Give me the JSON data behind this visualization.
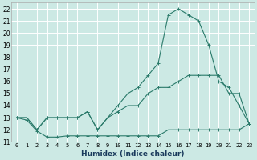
{
  "xlabel": "Humidex (Indice chaleur)",
  "xlim": [
    -0.5,
    23.5
  ],
  "ylim": [
    11,
    22.5
  ],
  "yticks": [
    11,
    12,
    13,
    14,
    15,
    16,
    17,
    18,
    19,
    20,
    21,
    22
  ],
  "xticks": [
    0,
    1,
    2,
    3,
    4,
    5,
    6,
    7,
    8,
    9,
    10,
    11,
    12,
    13,
    14,
    15,
    16,
    17,
    18,
    19,
    20,
    21,
    22,
    23
  ],
  "bg_color": "#cce9e4",
  "grid_color": "#ffffff",
  "line_color": "#2a7a6a",
  "line1_x": [
    0,
    1,
    2,
    3,
    4,
    5,
    6,
    7,
    8,
    9,
    10,
    11,
    12,
    13,
    14,
    15,
    16,
    17,
    18,
    19,
    20,
    21,
    22,
    23
  ],
  "line1_y": [
    13.0,
    12.8,
    11.9,
    11.4,
    11.4,
    11.5,
    11.5,
    11.5,
    11.5,
    11.5,
    11.5,
    11.5,
    11.5,
    11.5,
    11.5,
    12.0,
    12.0,
    12.0,
    12.0,
    12.0,
    12.0,
    12.0,
    12.0,
    12.5
  ],
  "line2_x": [
    0,
    1,
    2,
    3,
    4,
    5,
    6,
    7,
    8,
    9,
    10,
    11,
    12,
    13,
    14,
    15,
    16,
    17,
    18,
    19,
    20,
    21,
    22,
    23
  ],
  "line2_y": [
    13.0,
    13.0,
    12.0,
    13.0,
    13.0,
    13.0,
    13.0,
    13.5,
    12.0,
    13.0,
    13.5,
    14.0,
    14.0,
    15.0,
    15.5,
    15.5,
    16.0,
    16.5,
    16.5,
    16.5,
    16.5,
    15.0,
    15.0,
    12.5
  ],
  "line3_x": [
    0,
    1,
    2,
    3,
    4,
    5,
    6,
    7,
    8,
    9,
    10,
    11,
    12,
    13,
    14,
    15,
    16,
    17,
    18,
    19,
    20,
    21,
    22,
    23
  ],
  "line3_y": [
    13.0,
    13.0,
    12.0,
    13.0,
    13.0,
    13.0,
    13.0,
    13.5,
    12.0,
    13.0,
    14.0,
    15.0,
    15.5,
    16.5,
    17.5,
    21.5,
    22.0,
    21.5,
    21.0,
    19.0,
    16.0,
    15.5,
    14.0,
    12.5
  ]
}
